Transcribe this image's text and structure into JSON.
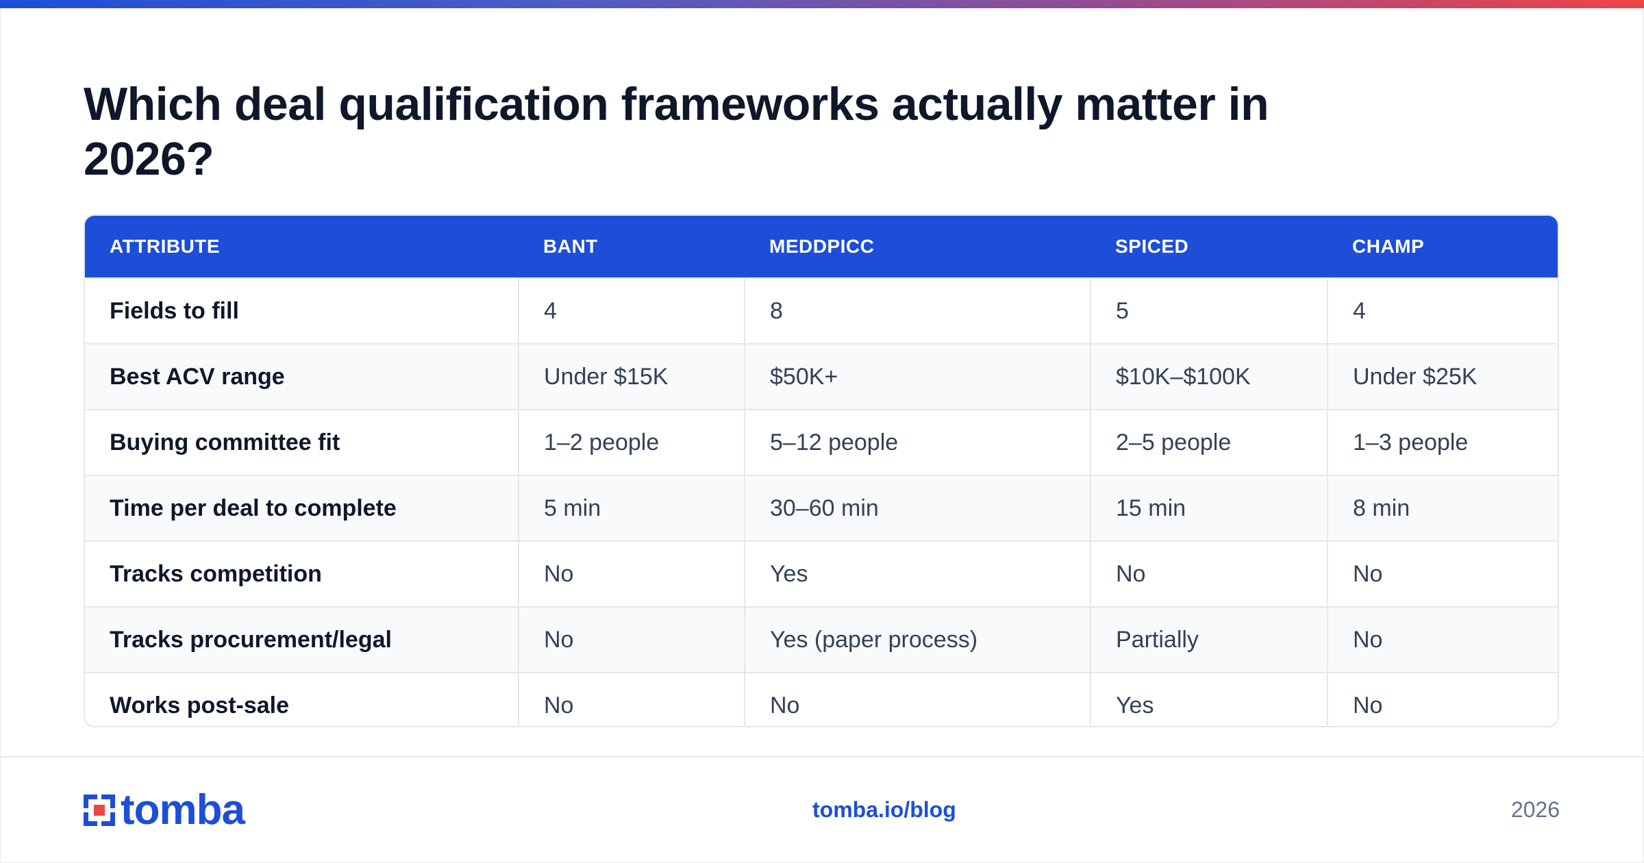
{
  "title": "Which deal qualification frameworks actually matter in 2026?",
  "table": {
    "headers": [
      "ATTRIBUTE",
      "BANT",
      "MEDDPICC",
      "SPICED",
      "CHAMP"
    ],
    "rows": [
      [
        "Fields to fill",
        "4",
        "8",
        "5",
        "4"
      ],
      [
        "Best ACV range",
        "Under $15K",
        "$50K+",
        "$10K–$100K",
        "Under $25K"
      ],
      [
        "Buying committee fit",
        "1–2 people",
        "5–12 people",
        "2–5 people",
        "1–3 people"
      ],
      [
        "Time per deal to complete",
        "5 min",
        "30–60 min",
        "15 min",
        "8 min"
      ],
      [
        "Tracks competition",
        "No",
        "Yes",
        "No",
        "No"
      ],
      [
        "Tracks procurement/legal",
        "No",
        "Yes (paper process)",
        "Partially",
        "No"
      ],
      [
        "Works post-sale",
        "No",
        "No",
        "Yes",
        "No"
      ]
    ]
  },
  "footer": {
    "logo_text": "tomba",
    "link": "tomba.io/blog",
    "year": "2026"
  },
  "colors": {
    "accent": "#1d4ed8",
    "heading": "#0f172a",
    "body_text": "#334155",
    "row_alt": "#f8fafc",
    "logo_red": "#ef4444"
  },
  "icons": {
    "logo_mark": "tomba-logo-icon"
  }
}
